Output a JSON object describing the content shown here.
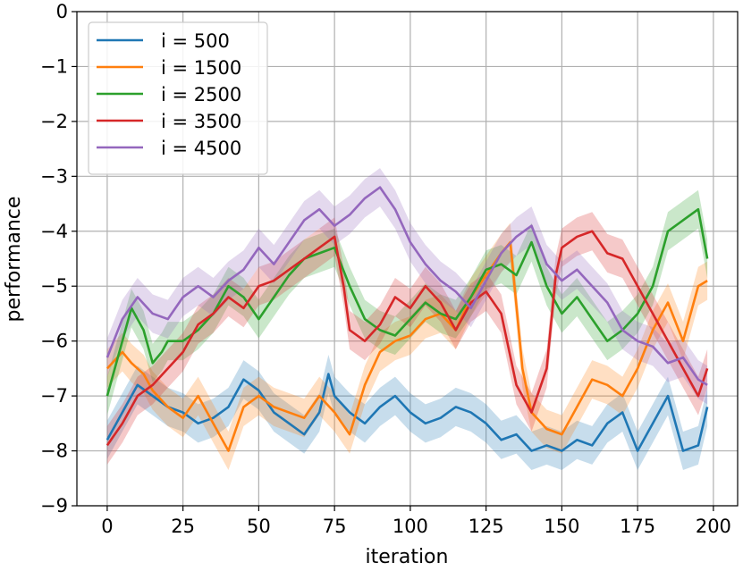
{
  "chart_data": {
    "type": "line",
    "xlabel": "iteration",
    "ylabel": "performance",
    "xlim": [
      -10,
      208
    ],
    "ylim": [
      -9,
      0
    ],
    "xticks": [
      0,
      25,
      50,
      75,
      100,
      125,
      150,
      175,
      200
    ],
    "yticks": [
      0,
      -1,
      -2,
      -3,
      -4,
      -5,
      -6,
      -7,
      -8,
      -9
    ],
    "xtick_labels": [
      "0",
      "25",
      "50",
      "75",
      "100",
      "125",
      "150",
      "175",
      "200"
    ],
    "ytick_labels": [
      "0",
      "−1",
      "−2",
      "−3",
      "−4",
      "−5",
      "−6",
      "−7",
      "−8",
      "−9"
    ],
    "grid": true,
    "legend_position": "upper-left",
    "band_halfwidth": 0.35,
    "series": [
      {
        "name": "i = 500",
        "color": "#1f77b4",
        "x": [
          0,
          5,
          10,
          15,
          20,
          25,
          30,
          35,
          40,
          45,
          50,
          55,
          60,
          65,
          70,
          73,
          75,
          80,
          85,
          90,
          95,
          100,
          105,
          110,
          115,
          120,
          125,
          130,
          135,
          140,
          145,
          150,
          155,
          160,
          165,
          170,
          175,
          180,
          185,
          190,
          195,
          198
        ],
        "y": [
          -7.8,
          -7.3,
          -6.8,
          -7.0,
          -7.2,
          -7.3,
          -7.5,
          -7.4,
          -7.2,
          -6.7,
          -6.9,
          -7.3,
          -7.5,
          -7.7,
          -7.3,
          -6.6,
          -7.0,
          -7.3,
          -7.5,
          -7.2,
          -7.0,
          -7.3,
          -7.5,
          -7.4,
          -7.2,
          -7.3,
          -7.5,
          -7.8,
          -7.7,
          -8.0,
          -7.9,
          -8.0,
          -7.8,
          -7.9,
          -7.5,
          -7.3,
          -8.0,
          -7.5,
          -7.0,
          -8.0,
          -7.9,
          -7.2
        ]
      },
      {
        "name": "i = 1500",
        "color": "#ff7f0e",
        "x": [
          0,
          5,
          8,
          12,
          15,
          20,
          25,
          30,
          35,
          40,
          45,
          50,
          55,
          60,
          65,
          70,
          75,
          80,
          85,
          90,
          95,
          100,
          105,
          110,
          115,
          120,
          125,
          130,
          133,
          137,
          140,
          145,
          150,
          155,
          160,
          165,
          170,
          175,
          180,
          185,
          190,
          195,
          198
        ],
        "y": [
          -6.5,
          -6.2,
          -6.4,
          -6.6,
          -6.9,
          -7.2,
          -7.4,
          -7.0,
          -7.5,
          -8.0,
          -7.2,
          -7.0,
          -7.2,
          -7.3,
          -7.4,
          -7.0,
          -7.3,
          -7.7,
          -6.8,
          -6.2,
          -6.0,
          -5.9,
          -5.6,
          -5.5,
          -5.8,
          -5.2,
          -4.8,
          -4.4,
          -4.2,
          -6.5,
          -7.3,
          -7.6,
          -7.7,
          -7.2,
          -6.7,
          -6.8,
          -7.0,
          -6.5,
          -5.8,
          -5.3,
          -6.0,
          -5.0,
          -4.9
        ]
      },
      {
        "name": "i = 2500",
        "color": "#2ca02c",
        "x": [
          0,
          5,
          8,
          12,
          15,
          18,
          20,
          25,
          30,
          35,
          40,
          45,
          50,
          55,
          60,
          65,
          70,
          75,
          80,
          85,
          90,
          95,
          100,
          105,
          110,
          115,
          120,
          125,
          130,
          135,
          140,
          145,
          150,
          155,
          160,
          165,
          170,
          175,
          180,
          185,
          190,
          195,
          198
        ],
        "y": [
          -7.0,
          -6.0,
          -5.4,
          -5.8,
          -6.4,
          -6.2,
          -6.0,
          -6.0,
          -5.8,
          -5.5,
          -5.0,
          -5.2,
          -5.6,
          -5.2,
          -4.8,
          -4.5,
          -4.4,
          -4.3,
          -5.0,
          -5.6,
          -5.8,
          -5.9,
          -5.6,
          -5.3,
          -5.5,
          -5.6,
          -5.2,
          -4.7,
          -4.6,
          -4.8,
          -4.2,
          -5.0,
          -5.5,
          -5.2,
          -5.6,
          -6.0,
          -5.8,
          -5.5,
          -5.0,
          -4.0,
          -3.8,
          -3.6,
          -4.5
        ]
      },
      {
        "name": "i = 3500",
        "color": "#d62728",
        "x": [
          0,
          5,
          10,
          15,
          20,
          25,
          30,
          35,
          40,
          45,
          50,
          55,
          60,
          65,
          70,
          75,
          78,
          80,
          85,
          90,
          95,
          100,
          105,
          110,
          115,
          120,
          125,
          130,
          135,
          140,
          145,
          148,
          150,
          155,
          160,
          165,
          170,
          175,
          180,
          185,
          190,
          195,
          198
        ],
        "y": [
          -7.9,
          -7.5,
          -7.0,
          -6.8,
          -6.5,
          -6.2,
          -5.7,
          -5.5,
          -5.2,
          -5.4,
          -5.0,
          -4.9,
          -4.7,
          -4.5,
          -4.3,
          -4.1,
          -5.0,
          -5.8,
          -6.0,
          -5.7,
          -5.2,
          -5.4,
          -5.0,
          -5.3,
          -5.8,
          -5.3,
          -5.1,
          -5.5,
          -6.8,
          -7.3,
          -6.5,
          -4.8,
          -4.3,
          -4.1,
          -4.0,
          -4.4,
          -4.5,
          -5.0,
          -5.5,
          -6.0,
          -6.5,
          -7.0,
          -6.5
        ]
      },
      {
        "name": "i = 4500",
        "color": "#9467bd",
        "x": [
          0,
          5,
          10,
          15,
          20,
          25,
          30,
          35,
          40,
          45,
          50,
          55,
          60,
          65,
          70,
          75,
          80,
          85,
          90,
          95,
          100,
          105,
          110,
          115,
          120,
          125,
          130,
          135,
          140,
          145,
          150,
          155,
          160,
          165,
          170,
          175,
          180,
          185,
          190,
          195,
          198
        ],
        "y": [
          -6.3,
          -5.6,
          -5.2,
          -5.5,
          -5.6,
          -5.2,
          -5.0,
          -5.2,
          -4.9,
          -4.7,
          -4.3,
          -4.6,
          -4.2,
          -3.8,
          -3.6,
          -3.9,
          -3.7,
          -3.4,
          -3.2,
          -3.6,
          -4.2,
          -4.6,
          -4.9,
          -5.1,
          -5.4,
          -4.9,
          -4.4,
          -4.1,
          -3.9,
          -4.6,
          -4.9,
          -4.7,
          -5.0,
          -5.3,
          -5.8,
          -6.0,
          -6.1,
          -6.4,
          -6.3,
          -6.7,
          -6.8
        ]
      }
    ]
  }
}
